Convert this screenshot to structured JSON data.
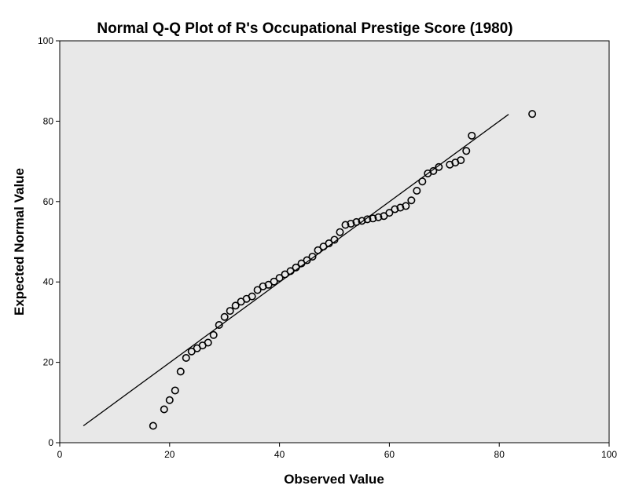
{
  "chart_data": {
    "type": "scatter",
    "title": "Normal Q-Q Plot of R's Occupational Prestige Score (1980)",
    "xlabel": "Observed Value",
    "ylabel": "Expected Normal Value",
    "xlim": [
      0,
      100
    ],
    "ylim": [
      0,
      100
    ],
    "xticks": [
      "0",
      "20",
      "40",
      "60",
      "80",
      "100"
    ],
    "yticks": [
      "0",
      "20",
      "40",
      "60",
      "80",
      "100"
    ],
    "grid": false,
    "background_color": "#e8e8e8",
    "point_style": "open-circle",
    "reference_line": {
      "x": [
        4.3,
        81.7
      ],
      "y": [
        4.2,
        81.7
      ]
    },
    "points": [
      [
        17,
        4.2
      ],
      [
        19,
        8.3
      ],
      [
        20,
        10.6
      ],
      [
        21,
        13.0
      ],
      [
        22,
        17.7
      ],
      [
        23,
        21.1
      ],
      [
        24,
        22.7
      ],
      [
        25,
        23.5
      ],
      [
        26,
        24.2
      ],
      [
        27,
        24.9
      ],
      [
        28,
        26.8
      ],
      [
        29,
        29.3
      ],
      [
        30,
        31.3
      ],
      [
        31,
        32.8
      ],
      [
        32,
        34.1
      ],
      [
        33,
        35.1
      ],
      [
        34,
        35.8
      ],
      [
        35,
        36.4
      ],
      [
        36,
        38.0
      ],
      [
        37,
        38.9
      ],
      [
        38,
        39.3
      ],
      [
        39,
        40.1
      ],
      [
        40,
        41.0
      ],
      [
        41,
        41.9
      ],
      [
        42,
        42.7
      ],
      [
        43,
        43.6
      ],
      [
        44,
        44.6
      ],
      [
        45,
        45.4
      ],
      [
        46,
        46.3
      ],
      [
        47,
        47.9
      ],
      [
        48,
        48.8
      ],
      [
        49,
        49.6
      ],
      [
        50,
        50.5
      ],
      [
        51,
        52.4
      ],
      [
        52,
        54.2
      ],
      [
        53,
        54.5
      ],
      [
        54,
        54.9
      ],
      [
        55,
        55.2
      ],
      [
        56,
        55.6
      ],
      [
        57,
        55.8
      ],
      [
        58,
        56.1
      ],
      [
        59,
        56.4
      ],
      [
        60,
        57.2
      ],
      [
        61,
        58.1
      ],
      [
        62,
        58.5
      ],
      [
        63,
        58.9
      ],
      [
        64,
        60.3
      ],
      [
        65,
        62.7
      ],
      [
        66,
        65.0
      ],
      [
        67,
        67.0
      ],
      [
        68,
        67.6
      ],
      [
        69,
        68.6
      ],
      [
        71,
        69.2
      ],
      [
        72,
        69.7
      ],
      [
        73,
        70.3
      ],
      [
        74,
        72.6
      ],
      [
        75,
        76.4
      ],
      [
        86,
        81.8
      ]
    ]
  }
}
